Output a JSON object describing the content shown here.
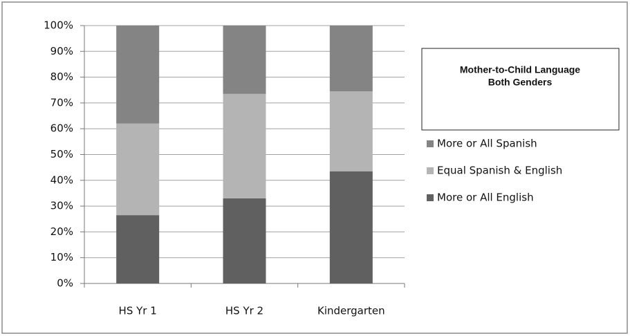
{
  "chart_data": {
    "type": "stacked_bar",
    "title": [
      "Mother-to-Child Language",
      "Both Genders"
    ],
    "categories": [
      "HS Yr 1",
      "HS Yr 2",
      "Kindergarten"
    ],
    "series": [
      {
        "name": "More or All English",
        "color": "#606060",
        "values": [
          26.5,
          33,
          43.5
        ]
      },
      {
        "name": "Equal Spanish & English",
        "color": "#b4b4b4",
        "values": [
          35.5,
          40.5,
          31
        ]
      },
      {
        "name": "More or All Spanish",
        "color": "#848484",
        "values": [
          38,
          26.5,
          25.5
        ]
      }
    ],
    "ylim": [
      0,
      100
    ],
    "yticks": [
      {
        "value": 0,
        "label": "0%"
      },
      {
        "value": 10,
        "label": "10%"
      },
      {
        "value": 20,
        "label": "20%"
      },
      {
        "value": 30,
        "label": "30%"
      },
      {
        "value": 40,
        "label": "40%"
      },
      {
        "value": 50,
        "label": "50%"
      },
      {
        "value": 60,
        "label": "60%"
      },
      {
        "value": 70,
        "label": "70%"
      },
      {
        "value": 80,
        "label": "80%"
      },
      {
        "value": 90,
        "label": "90%"
      },
      {
        "value": 100,
        "label": "100%"
      }
    ],
    "grid": true,
    "legend": "right"
  }
}
